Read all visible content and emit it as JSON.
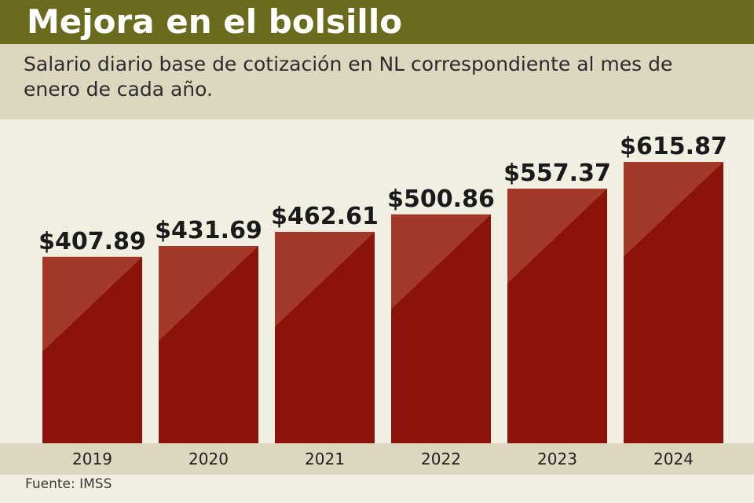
{
  "header": {
    "title": "Mejora en el bolsillo",
    "subtitle": "Salario diario base de cotización en NL correspondiente al mes de enero de cada año."
  },
  "footer": {
    "source": "Fuente: IMSS"
  },
  "colors": {
    "bar_dark": "#8b130a",
    "bar_light": "#a33a29",
    "title_bg": "#6a6b1d",
    "band_bg": "#ddd7bf",
    "plot_bg": "#f1eee2"
  },
  "chart_data": {
    "type": "bar",
    "title": "Mejora en el bolsillo",
    "subtitle": "Salario diario base de cotización en NL correspondiente al mes de enero de cada año.",
    "categories": [
      "2019",
      "2020",
      "2021",
      "2022",
      "2023",
      "2024"
    ],
    "values": [
      407.89,
      431.69,
      462.61,
      500.86,
      557.37,
      615.87
    ],
    "data_labels": [
      "$407.89",
      "$431.69",
      "$462.61",
      "$500.86",
      "$557.37",
      "$615.87"
    ],
    "xlabel": "",
    "ylabel": "",
    "ylim": [
      0,
      660
    ],
    "grid": false,
    "legend": "none",
    "source": "Fuente: IMSS"
  }
}
